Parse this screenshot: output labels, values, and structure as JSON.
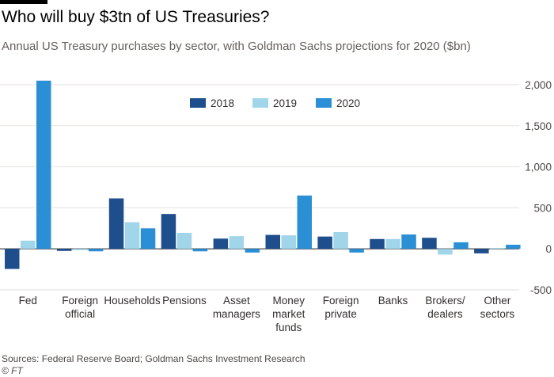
{
  "header": {
    "title": "Who will buy $3tn of US Treasuries?",
    "subtitle": "Annual US Treasury purchases by sector, with Goldman Sachs projections for 2020 ($bn)"
  },
  "footer": {
    "source": "Sources: Federal Reserve Board; Goldman Sachs Investment Research",
    "credit": "© FT"
  },
  "chart_data": {
    "type": "bar",
    "title": "Who will buy $3tn of US Treasuries?",
    "subtitle": "Annual US Treasury purchases by sector, with Goldman Sachs projections for 2020 ($bn)",
    "categories": [
      [
        "Fed"
      ],
      [
        "Foreign",
        "official"
      ],
      [
        "Households"
      ],
      [
        "Pensions"
      ],
      [
        "Asset",
        "managers"
      ],
      [
        "Money",
        "market",
        "funds"
      ],
      [
        "Foreign",
        "private"
      ],
      [
        "Banks"
      ],
      [
        "Brokers/",
        "dealers"
      ],
      [
        "Other",
        "sectors"
      ]
    ],
    "series": [
      {
        "name": "2018",
        "color": "#1f4e8c",
        "values": [
          -245,
          -25,
          615,
          425,
          125,
          170,
          150,
          120,
          135,
          -55
        ]
      },
      {
        "name": "2019",
        "color": "#a1d5ea",
        "values": [
          100,
          -15,
          325,
          195,
          155,
          165,
          205,
          120,
          -70,
          10
        ]
      },
      {
        "name": "2020",
        "color": "#2b8fd6",
        "values": [
          2050,
          -30,
          250,
          -30,
          -45,
          650,
          -45,
          175,
          80,
          50
        ]
      }
    ],
    "ylim": [
      -500,
      2000
    ],
    "yticks": [
      -500,
      0,
      500,
      1000,
      1500,
      2000
    ],
    "ytick_labels": [
      "-500",
      "0",
      "500",
      "1,000",
      "1,500",
      "2,000"
    ],
    "grid": true,
    "legend": "top-center",
    "xlabel": "",
    "ylabel": ""
  }
}
